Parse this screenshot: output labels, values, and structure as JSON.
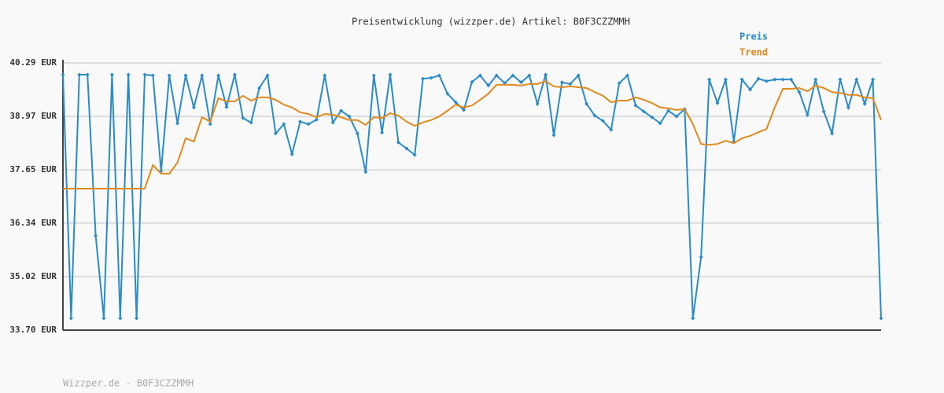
{
  "chart_data": {
    "type": "line",
    "title": "Preisentwicklung (wizzper.de) Artikel: B0F3CZZMMH",
    "footer": "Wizzper.de - B0F3CZZMMH",
    "ylim": [
      33.7,
      40.29
    ],
    "yticks": [
      {
        "value": 33.7,
        "label": "33.70 EUR"
      },
      {
        "value": 35.02,
        "label": "35.02 EUR"
      },
      {
        "value": 36.34,
        "label": "36.34 EUR"
      },
      {
        "value": 37.65,
        "label": "37.65 EUR"
      },
      {
        "value": 38.97,
        "label": "38.97 EUR"
      },
      {
        "value": 40.29,
        "label": "40.29 EUR"
      }
    ],
    "grid": true,
    "series": [
      {
        "name": "Preis",
        "color": "#2a8bc7",
        "markers": true,
        "values": [
          40.0,
          33.99,
          40.0,
          40.0,
          36.03,
          33.99,
          40.0,
          33.99,
          40.0,
          33.99,
          40.0,
          39.98,
          37.62,
          39.98,
          38.8,
          39.98,
          39.19,
          39.98,
          38.78,
          39.98,
          39.2,
          40.0,
          38.93,
          38.82,
          39.67,
          39.98,
          38.55,
          38.78,
          38.04,
          38.84,
          38.78,
          38.89,
          39.98,
          38.82,
          39.11,
          38.97,
          38.55,
          37.6,
          39.98,
          38.57,
          40.0,
          38.33,
          38.18,
          38.02,
          39.9,
          39.92,
          39.98,
          39.53,
          39.32,
          39.13,
          39.82,
          39.98,
          39.73,
          39.98,
          39.79,
          39.98,
          39.81,
          39.98,
          39.28,
          40.0,
          38.51,
          39.81,
          39.77,
          39.98,
          39.28,
          38.99,
          38.86,
          38.64,
          39.79,
          39.98,
          39.24,
          39.09,
          38.95,
          38.8,
          39.11,
          38.97,
          39.15,
          33.99,
          35.5,
          39.88,
          39.3,
          39.88,
          38.35,
          39.88,
          39.63,
          39.9,
          39.84,
          39.88,
          39.88,
          39.88,
          39.57,
          39.01,
          39.88,
          39.09,
          38.55,
          39.88,
          39.19,
          39.88,
          39.28,
          39.88,
          33.99
        ]
      },
      {
        "name": "Trend",
        "color": "#e08a1e",
        "markers": false,
        "values": [
          37.19,
          37.19,
          37.19,
          37.19,
          37.19,
          37.19,
          37.19,
          37.19,
          37.19,
          37.19,
          37.19,
          37.77,
          37.56,
          37.56,
          37.83,
          38.43,
          38.35,
          38.95,
          38.84,
          39.42,
          39.34,
          39.34,
          39.48,
          39.36,
          39.44,
          39.44,
          39.38,
          39.26,
          39.19,
          39.07,
          39.03,
          38.95,
          39.03,
          39.01,
          38.95,
          38.88,
          38.88,
          38.76,
          38.95,
          38.93,
          39.05,
          38.99,
          38.84,
          38.74,
          38.82,
          38.88,
          38.97,
          39.11,
          39.26,
          39.19,
          39.24,
          39.38,
          39.53,
          39.75,
          39.75,
          39.75,
          39.73,
          39.77,
          39.77,
          39.84,
          39.71,
          39.69,
          39.71,
          39.69,
          39.67,
          39.57,
          39.48,
          39.32,
          39.36,
          39.36,
          39.44,
          39.38,
          39.3,
          39.19,
          39.17,
          39.13,
          39.15,
          38.78,
          38.29,
          38.27,
          38.29,
          38.37,
          38.31,
          38.43,
          38.49,
          38.58,
          38.66,
          39.19,
          39.65,
          39.65,
          39.67,
          39.59,
          39.73,
          39.67,
          39.57,
          39.55,
          39.5,
          39.5,
          39.44,
          39.42,
          38.88
        ]
      }
    ]
  }
}
